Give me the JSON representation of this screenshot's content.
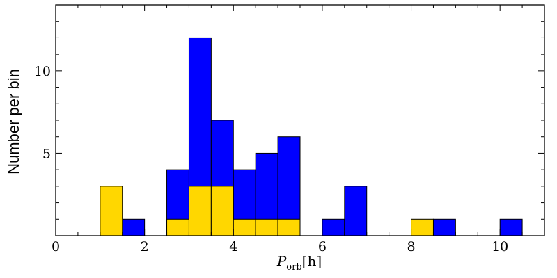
{
  "chart_data": {
    "type": "bar",
    "title": "",
    "xlabel_main": "P",
    "xlabel_sub": "orb",
    "xlabel_unit": "[h]",
    "ylabel": "Number per bin",
    "xlim": [
      0,
      11
    ],
    "ylim": [
      0,
      14
    ],
    "bin_width": 0.5,
    "x_ticks": [
      0,
      2,
      4,
      6,
      8,
      10
    ],
    "y_ticks": [
      5,
      10
    ],
    "grid": false,
    "stacked": false,
    "series": [
      {
        "color": "#0000ff",
        "bins": [
          {
            "x": 1.5,
            "value": 1
          },
          {
            "x": 2.5,
            "value": 4
          },
          {
            "x": 3.0,
            "value": 12
          },
          {
            "x": 3.5,
            "value": 7
          },
          {
            "x": 4.0,
            "value": 4
          },
          {
            "x": 4.5,
            "value": 5
          },
          {
            "x": 5.0,
            "value": 6
          },
          {
            "x": 6.0,
            "value": 1
          },
          {
            "x": 6.5,
            "value": 3
          },
          {
            "x": 8.5,
            "value": 1
          },
          {
            "x": 10.0,
            "value": 1
          }
        ]
      },
      {
        "color": "#ffd700",
        "bins": [
          {
            "x": 1.0,
            "value": 3
          },
          {
            "x": 2.5,
            "value": 1
          },
          {
            "x": 3.0,
            "value": 3
          },
          {
            "x": 3.5,
            "value": 3
          },
          {
            "x": 4.0,
            "value": 1
          },
          {
            "x": 4.5,
            "value": 1
          },
          {
            "x": 5.0,
            "value": 1
          },
          {
            "x": 8.0,
            "value": 1
          }
        ]
      }
    ]
  }
}
